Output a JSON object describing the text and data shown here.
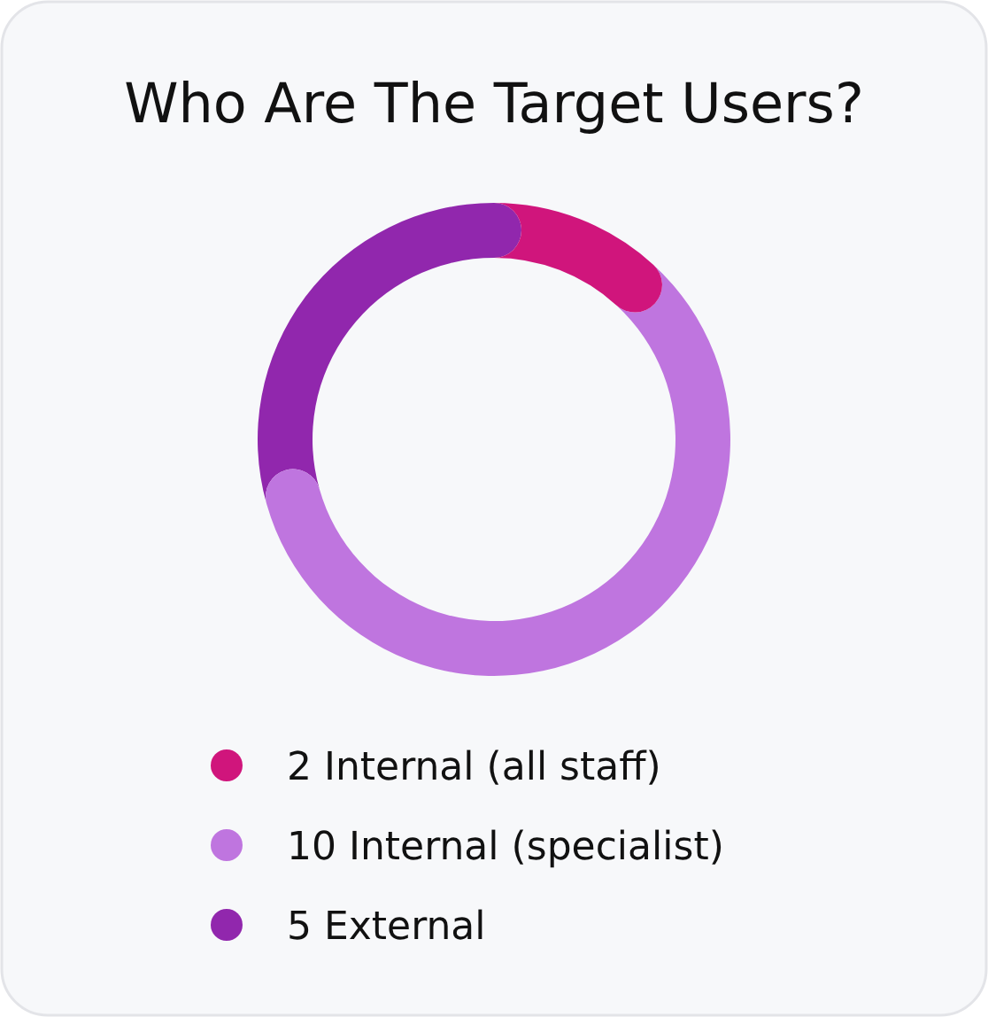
{
  "chart_data": {
    "type": "donut",
    "title": "Who Are The Target Users?",
    "categories": [
      "2 Internal (all staff)",
      "10 Internal (specialist)",
      "5 External"
    ],
    "values": [
      2,
      10,
      5
    ],
    "colors": [
      "#d0157c",
      "#bf75df",
      "#9127ad"
    ],
    "legend": "bottom"
  }
}
